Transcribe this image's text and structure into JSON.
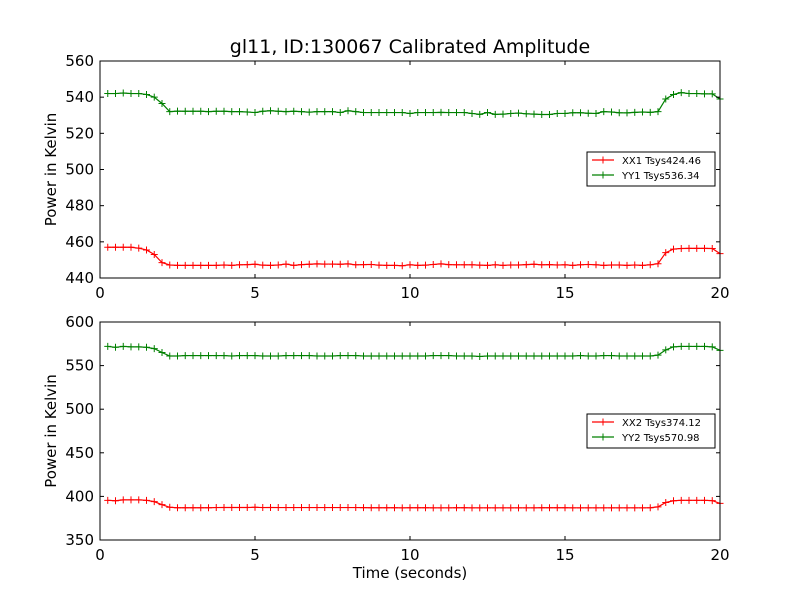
{
  "figure_title": "gl11, ID:130067 Calibrated Amplitude",
  "xlabel": "Time (seconds)",
  "chart_data": [
    {
      "type": "line",
      "title": "gl11, ID:130067 Calibrated Amplitude",
      "xlabel": "",
      "ylabel": "Power in Kelvin",
      "xlim": [
        0,
        20
      ],
      "ylim": [
        440,
        560
      ],
      "xticks": [
        0,
        5,
        10,
        15,
        20
      ],
      "yticks": [
        440,
        460,
        480,
        500,
        520,
        540,
        560
      ],
      "grid": false,
      "legend_position": "center-right",
      "x": [
        0.25,
        0.5,
        0.75,
        1.0,
        1.25,
        1.5,
        1.75,
        2.0,
        2.25,
        2.5,
        2.75,
        3.0,
        3.25,
        3.5,
        3.75,
        4.0,
        4.25,
        4.5,
        4.75,
        5.0,
        5.25,
        5.5,
        5.75,
        6.0,
        6.25,
        6.5,
        6.75,
        7.0,
        7.25,
        7.5,
        7.75,
        8.0,
        8.25,
        8.5,
        8.75,
        9.0,
        9.25,
        9.5,
        9.75,
        10.0,
        10.25,
        10.5,
        10.75,
        11.0,
        11.25,
        11.5,
        11.75,
        12.0,
        12.25,
        12.5,
        12.75,
        13.0,
        13.25,
        13.5,
        13.75,
        14.0,
        14.25,
        14.5,
        14.75,
        15.0,
        15.25,
        15.5,
        15.75,
        16.0,
        16.25,
        16.5,
        16.75,
        17.0,
        17.25,
        17.5,
        17.75,
        18.0,
        18.25,
        18.5,
        18.75,
        19.0,
        19.25,
        19.5,
        19.75,
        20.0
      ],
      "series": [
        {
          "name": "XX1 Tsys424.46",
          "color": "#ff0000",
          "values": [
            457,
            457,
            457,
            457,
            456.5,
            455.5,
            453,
            448.5,
            447.2,
            447,
            447,
            447,
            447,
            447,
            447,
            447.2,
            447,
            447.3,
            447.4,
            447.6,
            447.1,
            447,
            447.2,
            447.7,
            447,
            447.4,
            447.6,
            447.8,
            447.7,
            447.7,
            447.6,
            447.8,
            447.3,
            447.4,
            447.5,
            447.1,
            447,
            447,
            446.8,
            447.3,
            447,
            447.1,
            447.5,
            447.8,
            447.4,
            447.3,
            447.3,
            447.3,
            447.1,
            447,
            447.3,
            447,
            447.2,
            447.2,
            447.4,
            447.6,
            447.3,
            447.4,
            447.2,
            447.3,
            447,
            447.3,
            447.5,
            447.3,
            447,
            447.2,
            447.2,
            447,
            447.2,
            447,
            447.3,
            447.9,
            454,
            456,
            456.3,
            456.4,
            456.4,
            456.4,
            456.3,
            453.5
          ]
        },
        {
          "name": "YY1 Tsys536.34",
          "color": "#008000",
          "values": [
            542,
            542,
            542.3,
            542,
            542,
            541.5,
            540,
            536.5,
            532,
            532.3,
            532.2,
            532.2,
            532.2,
            532,
            532.2,
            532.2,
            532,
            532,
            531.8,
            531.5,
            532.2,
            532.5,
            532.2,
            532,
            532.2,
            532,
            531.7,
            532,
            532,
            532,
            531.5,
            532.5,
            532,
            531.5,
            531.5,
            531.5,
            531.5,
            531.5,
            531.5,
            531,
            531.5,
            531.5,
            531.5,
            531.6,
            531.5,
            531.5,
            531.5,
            531,
            530.5,
            531.5,
            530.5,
            530.6,
            531,
            531.2,
            530.8,
            530.6,
            530.4,
            530.4,
            531,
            531,
            531.4,
            531.4,
            531.1,
            531,
            532,
            531.8,
            531.4,
            531.3,
            531.6,
            531.8,
            531.6,
            532,
            539,
            541.5,
            542.5,
            542,
            542,
            541.8,
            541.8,
            539
          ]
        }
      ]
    },
    {
      "type": "line",
      "title": "",
      "xlabel": "Time (seconds)",
      "ylabel": "Power in Kelvin",
      "xlim": [
        0,
        20
      ],
      "ylim": [
        350,
        600
      ],
      "xticks": [
        0,
        5,
        10,
        15,
        20
      ],
      "yticks": [
        350,
        400,
        450,
        500,
        550,
        600
      ],
      "grid": false,
      "legend_position": "center-right",
      "x": [
        0.25,
        0.5,
        0.75,
        1.0,
        1.25,
        1.5,
        1.75,
        2.0,
        2.25,
        2.5,
        2.75,
        3.0,
        3.25,
        3.5,
        3.75,
        4.0,
        4.25,
        4.5,
        4.75,
        5.0,
        5.25,
        5.5,
        5.75,
        6.0,
        6.25,
        6.5,
        6.75,
        7.0,
        7.25,
        7.5,
        7.75,
        8.0,
        8.25,
        8.5,
        8.75,
        9.0,
        9.25,
        9.5,
        9.75,
        10.0,
        10.25,
        10.5,
        10.75,
        11.0,
        11.25,
        11.5,
        11.75,
        12.0,
        12.25,
        12.5,
        12.75,
        13.0,
        13.25,
        13.5,
        13.75,
        14.0,
        14.25,
        14.5,
        14.75,
        15.0,
        15.25,
        15.5,
        15.75,
        16.0,
        16.25,
        16.5,
        16.75,
        17.0,
        17.25,
        17.5,
        17.75,
        18.0,
        18.25,
        18.5,
        18.75,
        19.0,
        19.25,
        19.5,
        19.75,
        20.0
      ],
      "series": [
        {
          "name": "XX2 Tsys374.12",
          "color": "#ff0000",
          "values": [
            395.5,
            395,
            396,
            396,
            396,
            395.5,
            394,
            390.5,
            387.5,
            387,
            387,
            387,
            387,
            387,
            387.2,
            387.3,
            387.3,
            387.3,
            387.3,
            387.5,
            387.2,
            387.3,
            387.2,
            387.2,
            387.2,
            387.2,
            387.2,
            387.2,
            387.2,
            387.2,
            387.2,
            387.2,
            387.2,
            387.1,
            387,
            387,
            387,
            387,
            386.9,
            387,
            387,
            387,
            386.9,
            386.9,
            386.9,
            387,
            387,
            386.9,
            386.9,
            386.9,
            386.9,
            386.9,
            386.9,
            386.9,
            386.9,
            386.9,
            387,
            387,
            387,
            387,
            386.9,
            386.9,
            386.9,
            386.9,
            386.9,
            386.9,
            386.9,
            386.9,
            386.9,
            386.9,
            387,
            388,
            393,
            395,
            395.5,
            395.5,
            395.5,
            395.5,
            395.2,
            392
          ]
        },
        {
          "name": "YY2 Tsys570.98",
          "color": "#008000",
          "values": [
            572,
            571,
            572,
            571.5,
            571.5,
            571,
            569.5,
            565,
            561,
            561,
            561.5,
            561.5,
            561.5,
            561.5,
            561.5,
            561.5,
            561,
            561.5,
            561.5,
            561.5,
            561,
            561,
            561,
            561.5,
            561.5,
            561.5,
            561.5,
            561,
            561,
            561,
            561.5,
            561.5,
            561.5,
            561,
            561,
            561,
            561,
            561,
            561,
            561,
            561,
            561,
            561.5,
            561.5,
            561.5,
            561,
            561,
            561,
            560.5,
            561,
            561,
            561,
            561,
            561,
            561,
            561,
            561,
            561,
            561,
            561,
            561,
            561.5,
            561,
            561,
            561.5,
            561.5,
            561,
            561,
            561,
            561,
            561,
            562,
            568,
            571.5,
            572,
            572,
            572,
            572,
            571.5,
            567.5
          ]
        }
      ]
    }
  ]
}
